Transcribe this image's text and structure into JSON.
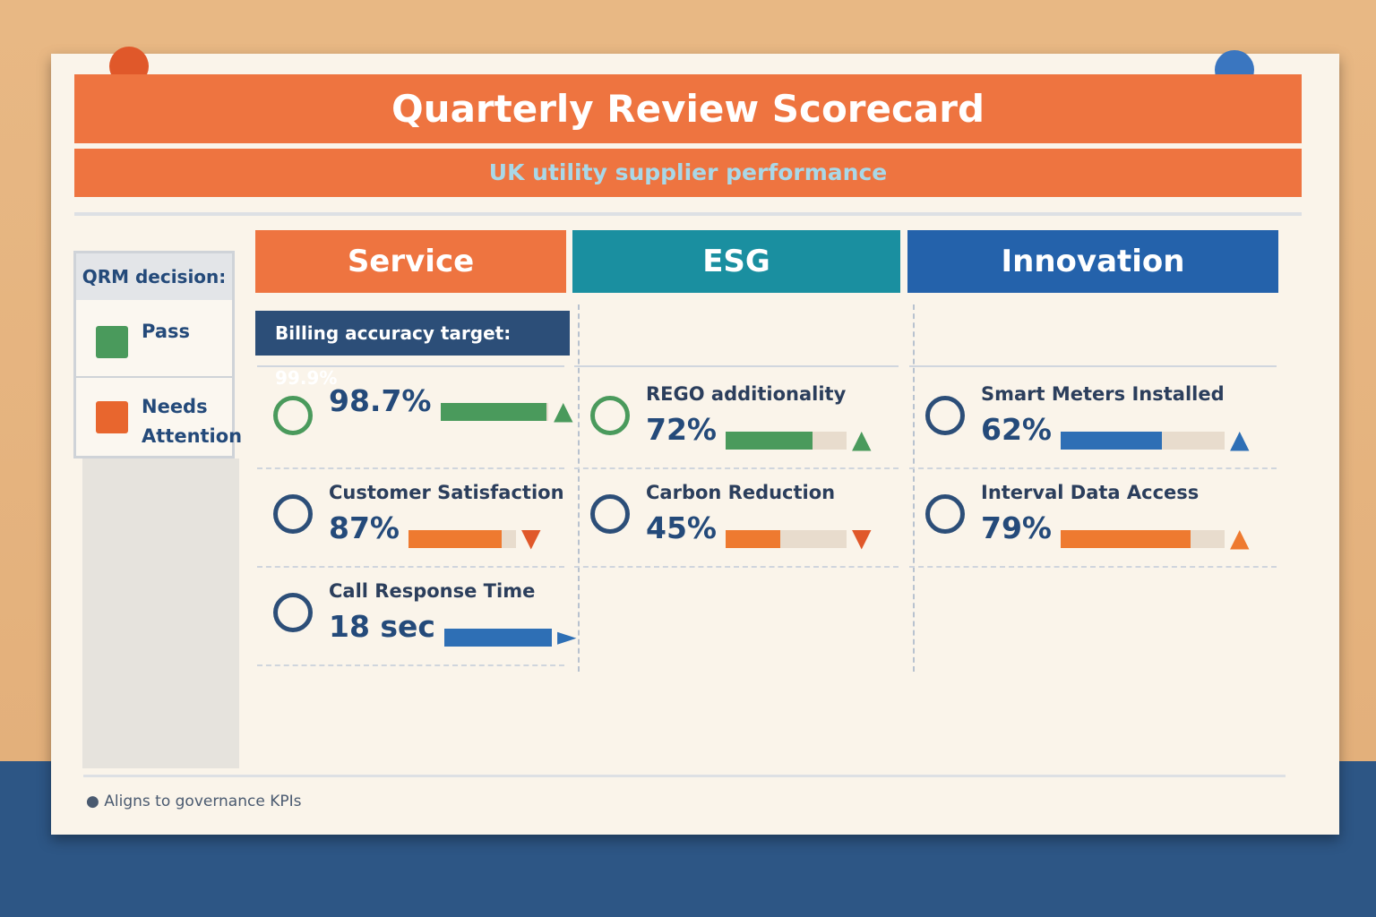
{
  "header": {
    "title": "Quarterly Review Scorecard",
    "subtitle": "UK utility supplier performance"
  },
  "decision": {
    "label": "QRM decision:",
    "options": [
      {
        "label": "Pass",
        "color": "#4a9a5c"
      },
      {
        "label": "Needs Attention",
        "color": "#e8662e"
      }
    ]
  },
  "columns": [
    {
      "title": "Service",
      "color": "#ee7440",
      "target": "Billing accuracy target: 99.9%",
      "kpis": [
        {
          "value": 98.7,
          "value_label": "98.7%",
          "trend": "up",
          "color": "#4a9a5c"
        },
        {
          "label": "Customer Satisfaction",
          "value": 87,
          "value_label": "87%",
          "trend": "down",
          "color": "#ee7a30"
        },
        {
          "label": "Call Response Time",
          "value_label": "18 sec",
          "trend": "right",
          "color": "#2e6fb5"
        }
      ]
    },
    {
      "title": "ESG",
      "color": "#1a8fa0",
      "kpis": [
        {
          "label": "REGO additionality",
          "value": 72,
          "value_label": "72%",
          "trend": "up",
          "color": "#4a9a5c"
        },
        {
          "label": "Carbon Reduction",
          "value": 45,
          "value_label": "45%",
          "trend": "down",
          "color": "#ee7a30"
        }
      ]
    },
    {
      "title": "Innovation",
      "color": "#2462ab",
      "kpis": [
        {
          "label": "Smart Meters Installed",
          "value": 62,
          "value_label": "62%",
          "trend": "up",
          "color": "#2e6fb5"
        },
        {
          "label": "Interval Data Access",
          "value": 79,
          "value_label": "79%",
          "trend": "up",
          "color": "#ee7a30"
        }
      ]
    }
  ],
  "footer": "Aligns to governance KPIs"
}
